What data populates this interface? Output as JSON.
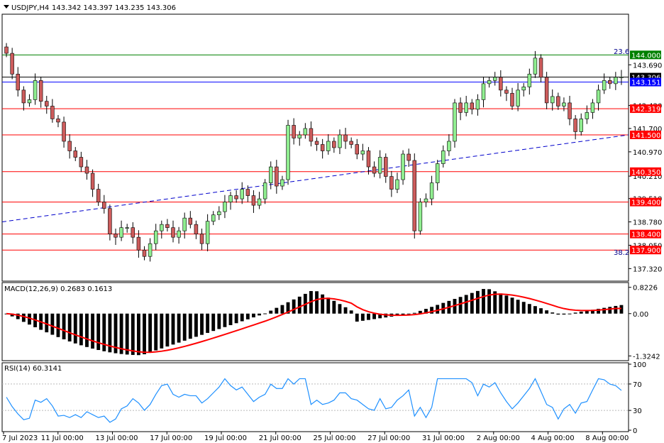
{
  "chart_data": [
    {
      "type": "candlestick",
      "title": "USDJPY,H4",
      "ohlc_header": "143.342 143.397 143.235 143.306",
      "symbol": "USDJPY",
      "timeframe": "H4",
      "last_ohlc": {
        "open": 143.342,
        "high": 143.397,
        "low": 143.235,
        "close": 143.306
      },
      "ylim": [
        136.95,
        145.25
      ],
      "y_ticks": [
        "143.690",
        "142.420",
        "141.700",
        "140.970",
        "140.210",
        "139.510",
        "138.780",
        "138.050",
        "137.320"
      ],
      "x_ticks": [
        "7 Jul 2023",
        "11 Jul 00:00",
        "13 Jul 00:00",
        "17 Jul 00:00",
        "19 Jul 00:00",
        "21 Jul 00:00",
        "25 Jul 00:00",
        "27 Jul 00:00",
        "31 Jul 00:00",
        "2 Aug 00:00",
        "4 Aug 00:00",
        "8 Aug 00:00"
      ],
      "horizontal_levels": [
        {
          "value": 144.0,
          "label": "144.000",
          "color": "#008000"
        },
        {
          "value": 143.306,
          "label": "143.306",
          "color": "#000000"
        },
        {
          "value": 143.151,
          "label": "143.151",
          "color": "#0000ff"
        },
        {
          "value": 142.319,
          "label": "142.319",
          "color": "#ff0000"
        },
        {
          "value": 141.5,
          "label": "141.500",
          "color": "#ff0000"
        },
        {
          "value": 140.35,
          "label": "140.350",
          "color": "#ff0000"
        },
        {
          "value": 139.4,
          "label": "139.400",
          "color": "#ff0000"
        },
        {
          "value": 138.4,
          "label": "138.400",
          "color": "#ff0000"
        },
        {
          "value": 137.9,
          "label": "137.900",
          "color": "#ff0000"
        }
      ],
      "fibo_labels": [
        "23.6",
        "38.2"
      ],
      "trendline": {
        "from": 138.78,
        "to": 141.5,
        "color": "#0000cc",
        "style": "dashed"
      },
      "closes": [
        144.05,
        143.4,
        142.9,
        142.5,
        142.6,
        143.2,
        142.55,
        142.4,
        142.0,
        141.9,
        141.3,
        141.0,
        140.8,
        140.5,
        140.3,
        139.8,
        139.4,
        139.2,
        138.4,
        138.3,
        138.6,
        138.6,
        138.3,
        137.9,
        137.7,
        138.1,
        138.5,
        138.7,
        138.6,
        138.3,
        138.5,
        138.9,
        138.7,
        138.4,
        138.1,
        138.8,
        139.0,
        139.1,
        139.4,
        139.6,
        139.5,
        139.8,
        139.6,
        139.3,
        139.5,
        140.0,
        140.5,
        139.9,
        140.1,
        141.8,
        141.4,
        141.5,
        141.7,
        141.3,
        141.2,
        141.0,
        141.3,
        141.1,
        141.5,
        141.3,
        141.2,
        140.9,
        141.0,
        140.5,
        140.3,
        140.8,
        140.2,
        139.8,
        140.1,
        140.9,
        140.7,
        138.5,
        139.4,
        139.5,
        140.0,
        140.6,
        141.0,
        141.3,
        142.5,
        142.2,
        142.5,
        142.3,
        142.6,
        143.1,
        143.2,
        143.3,
        142.9,
        142.8,
        142.4,
        142.9,
        143.0,
        143.4,
        143.9,
        143.3,
        142.5,
        142.7,
        142.4,
        142.5,
        142.0,
        141.6,
        142.0,
        142.2,
        142.5,
        142.9,
        143.2,
        143.1,
        143.3,
        143.31
      ],
      "macd": {
        "label": "MACD(12,26,9) 0.2683 0.1613",
        "params": "12,26,9",
        "macd_value": 0.2683,
        "signal_value": 0.1613,
        "ylim": [
          -1.45,
          0.95
        ],
        "y_ticks": [
          "0.8226",
          "0.00",
          "-1.3242"
        ],
        "histogram_color": "#000000",
        "signal_color": "#ff0000"
      },
      "rsi": {
        "label": "RSI(14) 60.3141",
        "period": 14,
        "value": 60.3141,
        "ylim": [
          0,
          100
        ],
        "y_ticks": [
          "100",
          "70",
          "30",
          "0"
        ],
        "levels": [
          70,
          30
        ],
        "color": "#1e90ff"
      }
    }
  ]
}
